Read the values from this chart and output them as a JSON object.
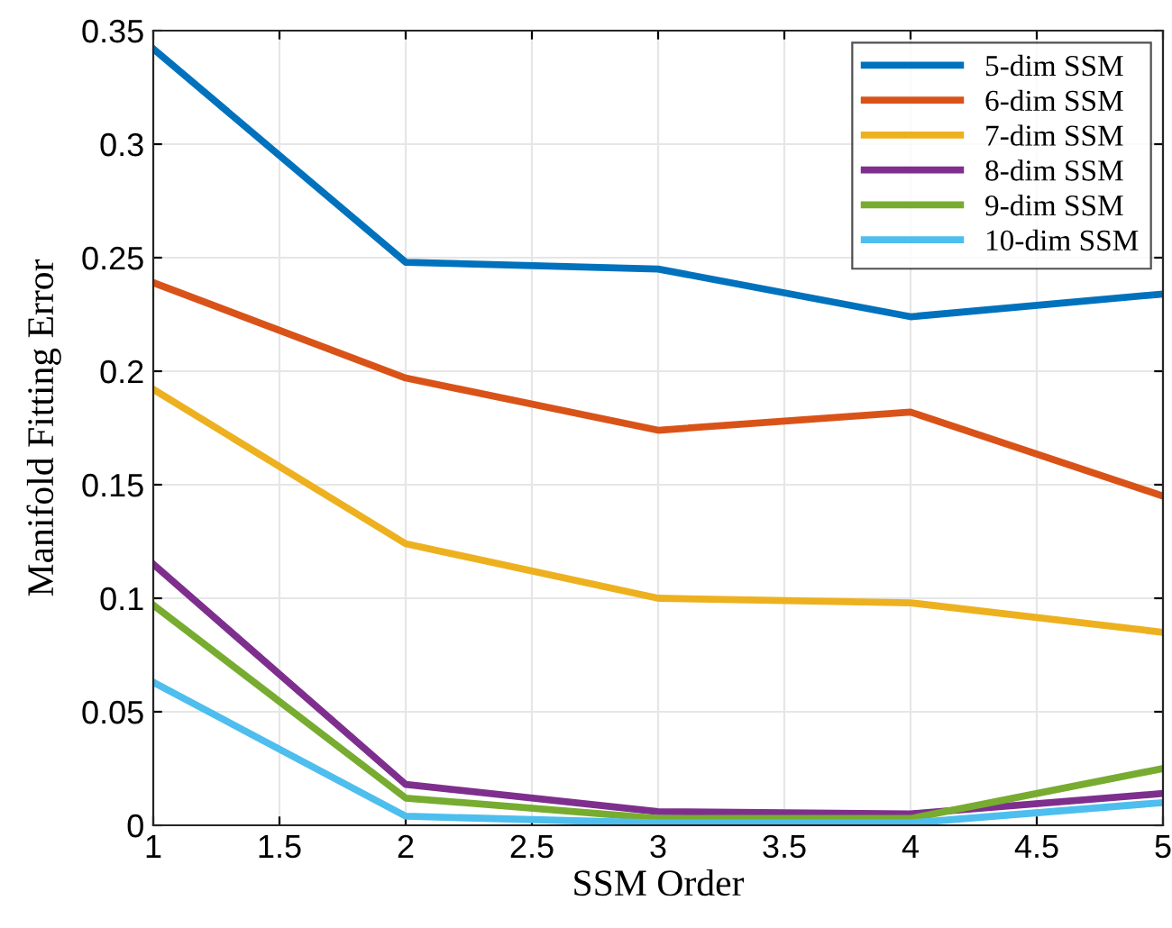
{
  "chart_data": {
    "type": "line",
    "xlabel": "SSM Order",
    "ylabel": "Manifold Fitting Error",
    "x": [
      1,
      2,
      3,
      4,
      5
    ],
    "series": [
      {
        "name": "5-dim SSM",
        "color": "#0072bd",
        "values": [
          0.342,
          0.248,
          0.245,
          0.224,
          0.234
        ]
      },
      {
        "name": "6-dim SSM",
        "color": "#d95319",
        "values": [
          0.239,
          0.197,
          0.174,
          0.182,
          0.145
        ]
      },
      {
        "name": "7-dim SSM",
        "color": "#edb120",
        "values": [
          0.192,
          0.124,
          0.1,
          0.098,
          0.085
        ]
      },
      {
        "name": "8-dim SSM",
        "color": "#7e2f8e",
        "values": [
          0.115,
          0.018,
          0.006,
          0.005,
          0.014
        ]
      },
      {
        "name": "9-dim SSM",
        "color": "#77ac30",
        "values": [
          0.097,
          0.012,
          0.003,
          0.003,
          0.025
        ]
      },
      {
        "name": "10-dim SSM",
        "color": "#4dbeee",
        "values": [
          0.063,
          0.004,
          0.001,
          0.001,
          0.01
        ]
      }
    ],
    "xlim": [
      1,
      5
    ],
    "xticks": [
      1,
      1.5,
      2,
      2.5,
      3,
      3.5,
      4,
      4.5,
      5
    ],
    "ylim": [
      0,
      0.35
    ],
    "yticks": [
      0,
      0.05,
      0.1,
      0.15,
      0.2,
      0.25,
      0.3,
      0.35
    ],
    "grid": true,
    "legend": "top right",
    "line_style": "solid",
    "marker": "none"
  }
}
